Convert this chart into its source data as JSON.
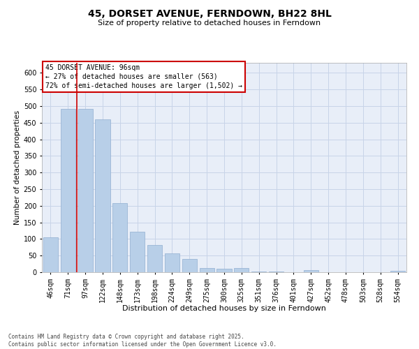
{
  "title": "45, DORSET AVENUE, FERNDOWN, BH22 8HL",
  "subtitle": "Size of property relative to detached houses in Ferndown",
  "xlabel": "Distribution of detached houses by size in Ferndown",
  "ylabel": "Number of detached properties",
  "categories": [
    "46sqm",
    "71sqm",
    "97sqm",
    "122sqm",
    "148sqm",
    "173sqm",
    "198sqm",
    "224sqm",
    "249sqm",
    "275sqm",
    "300sqm",
    "325sqm",
    "351sqm",
    "376sqm",
    "401sqm",
    "427sqm",
    "452sqm",
    "478sqm",
    "503sqm",
    "528sqm",
    "554sqm"
  ],
  "values": [
    105,
    492,
    492,
    460,
    207,
    122,
    82,
    57,
    40,
    13,
    10,
    12,
    2,
    2,
    0,
    6,
    0,
    0,
    0,
    0,
    5
  ],
  "bar_color": "#b8cfe8",
  "bar_edge_color": "#90aed0",
  "grid_color": "#c8d4e8",
  "background_color": "#e8eef8",
  "vline_x_index": 2,
  "vline_color": "#cc0000",
  "annotation_text": "45 DORSET AVENUE: 96sqm\n← 27% of detached houses are smaller (563)\n72% of semi-detached houses are larger (1,502) →",
  "annotation_box_color": "#cc0000",
  "footer": "Contains HM Land Registry data © Crown copyright and database right 2025.\nContains public sector information licensed under the Open Government Licence v3.0.",
  "ylim": [
    0,
    630
  ],
  "yticks": [
    0,
    50,
    100,
    150,
    200,
    250,
    300,
    350,
    400,
    450,
    500,
    550,
    600
  ],
  "title_fontsize": 10,
  "subtitle_fontsize": 8,
  "xlabel_fontsize": 8,
  "ylabel_fontsize": 7.5,
  "tick_fontsize": 7,
  "annotation_fontsize": 7,
  "footer_fontsize": 5.5
}
